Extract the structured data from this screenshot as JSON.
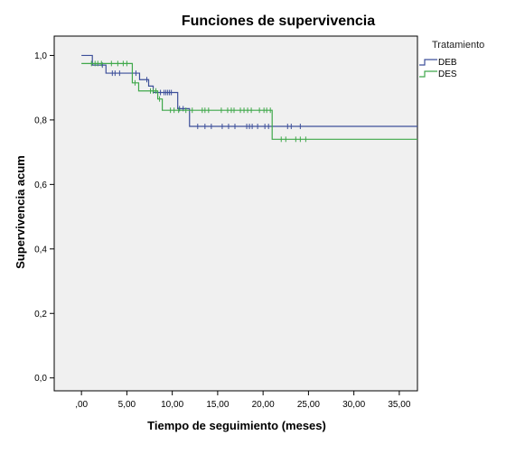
{
  "chart_data": {
    "type": "line",
    "step": true,
    "title": "Funciones de supervivencia",
    "xlabel": "Tiempo de seguimiento (meses)",
    "ylabel": "Supervivencia acum",
    "xlim": [
      -3,
      37
    ],
    "ylim": [
      -0.04,
      1.06
    ],
    "x_ticks": [
      0,
      5,
      10,
      15,
      20,
      25,
      30,
      35
    ],
    "x_tick_labels": [
      ",00",
      "5,00",
      "10,00",
      "15,00",
      "20,00",
      "25,00",
      "30,00",
      "35,00"
    ],
    "y_ticks": [
      0,
      0.2,
      0.4,
      0.6,
      0.8,
      1.0
    ],
    "y_tick_labels": [
      "0,0",
      "0,2",
      "0,4",
      "0,6",
      "0,8",
      "1,0"
    ],
    "background": "#f0f0f0",
    "grid": false,
    "legend": {
      "title": "Tratamiento",
      "placement": "right"
    },
    "series": [
      {
        "name": "DEB",
        "color": "#3d4f9a",
        "steps": [
          [
            0,
            1.0
          ],
          [
            1.2,
            0.97
          ],
          [
            2.7,
            0.945
          ],
          [
            6.4,
            0.925
          ],
          [
            7.4,
            0.905
          ],
          [
            7.9,
            0.885
          ],
          [
            10.6,
            0.835
          ],
          [
            11.9,
            0.78
          ],
          [
            37,
            0.78
          ]
        ],
        "censored_x": [
          2.3,
          3.4,
          3.7,
          4.2,
          6.0,
          7.2,
          8.7,
          9.1,
          9.3,
          9.5,
          9.7,
          9.9,
          10.8,
          11.2,
          12.8,
          13.6,
          14.3,
          15.5,
          16.2,
          16.9,
          18.2,
          18.5,
          18.8,
          19.4,
          20.2,
          20.6,
          22.7,
          23.1,
          24.1
        ]
      },
      {
        "name": "DES",
        "color": "#3fa84a",
        "steps": [
          [
            0,
            0.975
          ],
          [
            5.6,
            0.915
          ],
          [
            6.3,
            0.89
          ],
          [
            8.4,
            0.865
          ],
          [
            8.9,
            0.83
          ],
          [
            21.0,
            0.74
          ],
          [
            37,
            0.74
          ]
        ],
        "censored_x": [
          1.1,
          1.5,
          1.8,
          2.2,
          3.3,
          4.0,
          4.6,
          5.0,
          5.9,
          7.6,
          7.9,
          8.2,
          8.6,
          9.8,
          10.2,
          10.7,
          11.5,
          12.2,
          13.3,
          13.6,
          14.0,
          15.4,
          16.1,
          16.5,
          16.8,
          17.5,
          17.9,
          18.3,
          18.7,
          19.6,
          20.1,
          20.4,
          20.8,
          22.0,
          22.5,
          23.6,
          24.1,
          24.7
        ]
      }
    ]
  }
}
